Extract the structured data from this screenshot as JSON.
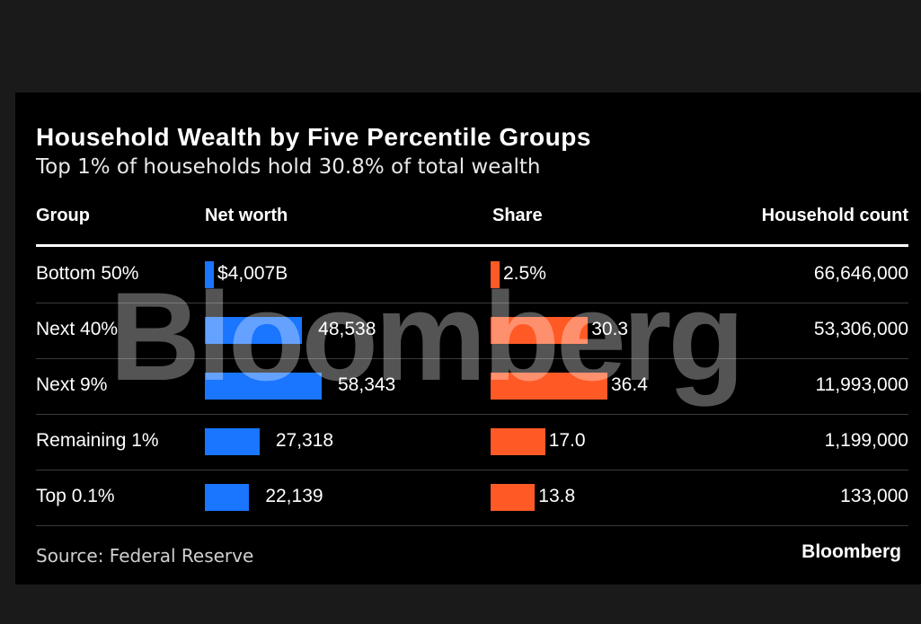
{
  "chart_data": {
    "type": "table",
    "title": "Household Wealth by Five Percentile Groups",
    "subtitle": "Top 1% of households hold 30.8% of total wealth",
    "columns": [
      "Group",
      "Net worth",
      "Share",
      "Household count"
    ],
    "categories": [
      "Bottom 50%",
      "Next 40%",
      "Next 9%",
      "Remaining 1%",
      "Top 0.1%"
    ],
    "series": [
      {
        "name": "Net worth",
        "values": [
          4007,
          48538,
          58343,
          27318,
          22139
        ],
        "labels": [
          "$4,007B",
          "48,538",
          "58,343",
          "27,318",
          "22,139"
        ]
      },
      {
        "name": "Share",
        "values": [
          2.5,
          30.3,
          36.4,
          17.0,
          13.8
        ],
        "labels": [
          "2.5%",
          "30.3",
          "36.4",
          "17.0",
          "13.8"
        ]
      },
      {
        "name": "Household count",
        "values": [
          66646000,
          53306000,
          11993000,
          1199000,
          133000
        ],
        "labels": [
          "66,646,000",
          "53,306,000",
          "11,993,000",
          "1,199,000",
          "133,000"
        ]
      }
    ],
    "colors": {
      "net_worth": "#1a75ff",
      "share": "#ff5a26"
    }
  },
  "source": "Source: Federal Reserve",
  "brand": "Bloomberg",
  "watermark": "Bloomberg"
}
